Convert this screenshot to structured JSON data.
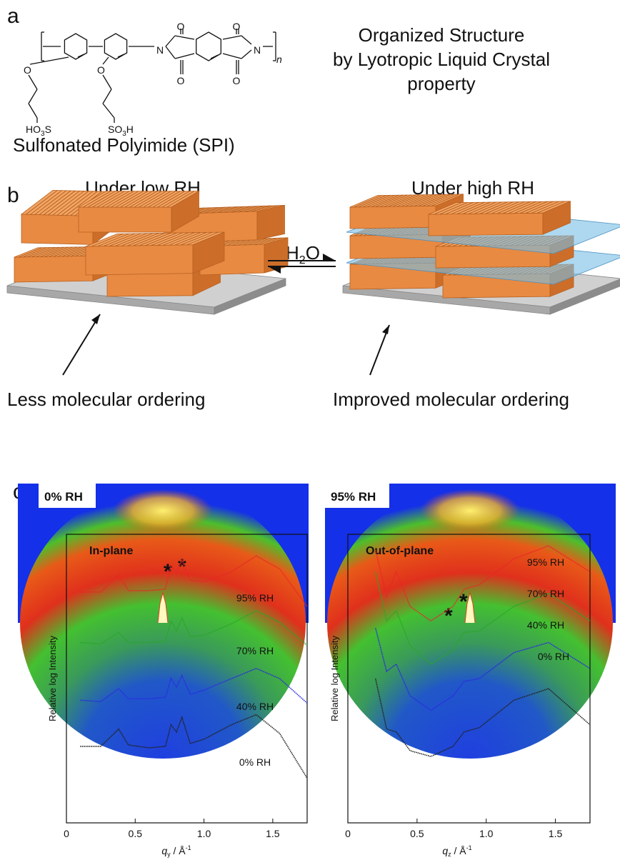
{
  "panel_a": {
    "label": "a",
    "caption": "Sulfonated Polyimide (SPI)",
    "title_lines": [
      "Organized Structure",
      "by Lyotropic Liquid Crystal",
      "property"
    ],
    "atoms": [
      "O",
      "O",
      "N",
      "O",
      "O",
      "N",
      "O",
      "O",
      "n",
      "HO",
      "3",
      "S",
      "SO",
      "3",
      "H"
    ]
  },
  "panel_b": {
    "label": "b",
    "left_title": "Under low RH",
    "right_title": "Under high RH",
    "water": [
      "H",
      "2",
      "O"
    ],
    "left_caption": "Less molecular ordering",
    "right_caption": "Improved molecular ordering"
  },
  "panel_c": {
    "label": "c",
    "image_labels": [
      "0% RH",
      "95% RH"
    ]
  },
  "chart_data": [
    {
      "type": "line",
      "title": "In-plane",
      "xlabel": {
        "q": "q",
        "sub": "y",
        "unit": " / Å",
        "sup": "-1"
      },
      "ylabel": "Relative log Intensity",
      "x": [
        0.1,
        0.25,
        0.38,
        0.45,
        0.6,
        0.72,
        0.76,
        0.8,
        0.84,
        0.9,
        1.0,
        1.2,
        1.38,
        1.55,
        1.75
      ],
      "series": [
        {
          "name": "95% RH",
          "color": "#e8262a",
          "values": [
            16.0,
            16.0,
            17.2,
            16.1,
            16.1,
            16.2,
            17.9,
            17.3,
            18.2,
            16.8,
            16.7,
            17.4,
            18.5,
            17.6,
            15.0
          ]
        },
        {
          "name": "70% RH",
          "color": "#2aa52a",
          "values": [
            12.5,
            12.4,
            13.2,
            12.5,
            12.5,
            12.6,
            14.0,
            13.3,
            14.2,
            12.9,
            13.0,
            13.8,
            14.7,
            13.9,
            12.3
          ]
        },
        {
          "name": "40% RH",
          "color": "#2a2ae0",
          "values": [
            8.5,
            8.4,
            9.3,
            8.6,
            8.6,
            8.7,
            10.0,
            9.4,
            10.2,
            8.9,
            9.2,
            10.0,
            10.7,
            10.0,
            8.3
          ]
        },
        {
          "name": "0% RH",
          "color": "#222222",
          "values": [
            5.3,
            5.3,
            6.5,
            5.4,
            5.2,
            5.3,
            6.8,
            6.3,
            7.3,
            5.5,
            5.8,
            6.8,
            7.5,
            6.2,
            3.1
          ]
        }
      ],
      "annotations": [
        "*",
        "*"
      ],
      "xlim": [
        0,
        1.75
      ],
      "ylim": [
        0,
        20
      ],
      "xticks": [
        0,
        0.5,
        {
          "value": 1,
          "label": "1.0"
        },
        1.5
      ]
    },
    {
      "type": "line",
      "title": "Out-of-plane",
      "xlabel": {
        "q": "q",
        "sub": "z",
        "unit": " / Å",
        "sup": "-1"
      },
      "ylabel": "Relative log Intensity",
      "x": [
        0.2,
        0.28,
        0.35,
        0.45,
        0.6,
        0.76,
        0.84,
        0.95,
        1.2,
        1.45,
        1.75
      ],
      "series": [
        {
          "name": "95% RH",
          "color": "#e8262a",
          "values": [
            18.9,
            15.7,
            17.4,
            15.0,
            14.0,
            15.0,
            16.2,
            16.5,
            18.3,
            19.2,
            17.4
          ]
        },
        {
          "name": "70% RH",
          "color": "#2aa52a",
          "values": [
            17.4,
            14.0,
            14.7,
            12.3,
            11.0,
            12.0,
            13.2,
            13.3,
            15.0,
            15.9,
            14.0
          ]
        },
        {
          "name": "40% RH",
          "color": "#2a2ae0",
          "values": [
            13.5,
            10.5,
            11.0,
            8.8,
            7.8,
            8.8,
            9.8,
            10.0,
            11.8,
            12.5,
            10.7
          ]
        },
        {
          "name": "0% RH",
          "color": "#222222",
          "values": [
            10.0,
            6.5,
            6.3,
            5.0,
            4.6,
            5.3,
            6.3,
            6.6,
            8.5,
            9.3,
            6.8
          ]
        }
      ],
      "annotations": [
        "*",
        "*"
      ],
      "xlim": [
        0,
        1.75
      ],
      "ylim": [
        0,
        20
      ],
      "xticks": [
        0,
        0.5,
        {
          "value": 1,
          "label": "1.0"
        },
        1.5
      ]
    }
  ]
}
